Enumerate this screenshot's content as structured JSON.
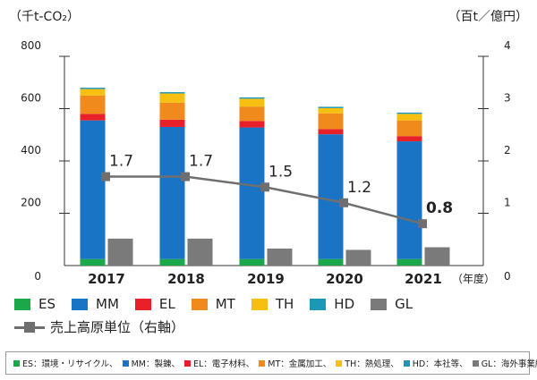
{
  "units": {
    "left": "（千t-CO₂）",
    "right": "（百t／億円）"
  },
  "year_suffix": "（年度）",
  "colors": {
    "ES": "#1aa84a",
    "MM": "#1a74c6",
    "EL": "#e8202a",
    "MT": "#f08a1c",
    "TH": "#f7bf10",
    "HD": "#1c97b8",
    "GL": "#7a7a7a",
    "line": "#6f6f6f"
  },
  "chart_data": {
    "type": "bar",
    "stacked": true,
    "categories": [
      "2017",
      "2018",
      "2019",
      "2020",
      "2021"
    ],
    "y_left": {
      "ticks": [
        "0",
        "200",
        "400",
        "600",
        "800"
      ],
      "min": 0,
      "max": 800
    },
    "y_right": {
      "ticks": [
        "0",
        "1",
        "2",
        "3",
        "4"
      ],
      "min": 0,
      "max": 4
    },
    "series": [
      {
        "name": "ES",
        "values": [
          25,
          25,
          25,
          25,
          25
        ]
      },
      {
        "name": "MM",
        "values": [
          530,
          505,
          503,
          477,
          450
        ]
      },
      {
        "name": "EL",
        "values": [
          25,
          28,
          25,
          20,
          20
        ]
      },
      {
        "name": "MT",
        "values": [
          70,
          65,
          55,
          60,
          60
        ]
      },
      {
        "name": "TH",
        "values": [
          25,
          35,
          30,
          20,
          25
        ]
      },
      {
        "name": "HD",
        "values": [
          5,
          5,
          5,
          5,
          5
        ]
      }
    ],
    "gl_values": [
      103,
      103,
      65,
      60,
      70
    ],
    "line": {
      "name": "売上高原単位（右軸）",
      "values": [
        1.7,
        1.7,
        1.5,
        1.2,
        0.8
      ],
      "labels": [
        "1.7",
        "1.7",
        "1.5",
        "1.2",
        "0.8"
      ]
    }
  },
  "legend": {
    "items": [
      {
        "key": "ES",
        "label": "ES"
      },
      {
        "key": "MM",
        "label": "MM"
      },
      {
        "key": "EL",
        "label": "EL"
      },
      {
        "key": "MT",
        "label": "MT"
      },
      {
        "key": "TH",
        "label": "TH"
      },
      {
        "key": "HD",
        "label": "HD"
      },
      {
        "key": "GL",
        "label": "GL"
      }
    ],
    "line_label": "売上高原単位（右軸）"
  },
  "footnote": [
    {
      "key": "ES",
      "text": "ES：環境・リサイクル、"
    },
    {
      "key": "MM",
      "text": "MM：製錬、"
    },
    {
      "key": "EL",
      "text": "EL：電子材料、"
    },
    {
      "key": "MT",
      "text": "MT：金属加工、"
    },
    {
      "key": "TH",
      "text": "TH：熱処理、"
    },
    {
      "key": "HD",
      "text": "HD：本社等、"
    },
    {
      "key": "GL",
      "text": "GL：海外事業所"
    }
  ]
}
